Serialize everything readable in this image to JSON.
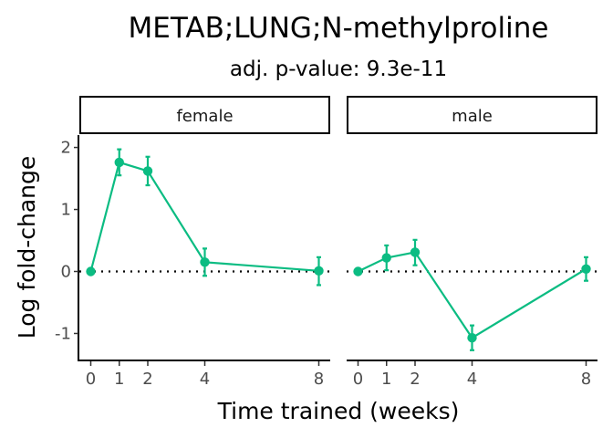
{
  "chart_data": {
    "type": "line",
    "title": "METAB;LUNG;N-methylproline",
    "subtitle": "adj. p-value: 9.3e-11",
    "xlabel": "Time trained (weeks)",
    "ylabel": "Log fold-change",
    "x_ticks": [
      0,
      1,
      2,
      4,
      8
    ],
    "y_ticks": [
      -1,
      0,
      1,
      2
    ],
    "ylim": [
      -1.42,
      2.2
    ],
    "xlim": [
      -0.4,
      8.4
    ],
    "reference_line": 0,
    "color": "#0bbc82",
    "panels": [
      {
        "label": "female",
        "x": [
          0,
          1,
          2,
          4,
          8
        ],
        "y": [
          0.0,
          1.76,
          1.62,
          0.15,
          0.01
        ],
        "error_low": [
          0.0,
          1.55,
          1.39,
          -0.07,
          -0.22
        ],
        "error_high": [
          0.0,
          1.97,
          1.85,
          0.37,
          0.23
        ]
      },
      {
        "label": "male",
        "x": [
          0,
          1,
          2,
          4,
          8
        ],
        "y": [
          0.0,
          0.22,
          0.31,
          -1.07,
          0.04
        ],
        "error_low": [
          0.0,
          0.02,
          0.1,
          -1.27,
          -0.15
        ],
        "error_high": [
          0.0,
          0.42,
          0.51,
          -0.87,
          0.23
        ]
      }
    ]
  }
}
